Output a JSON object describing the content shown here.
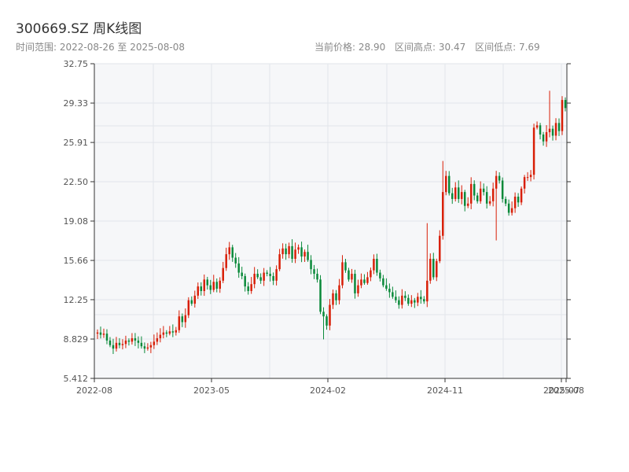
{
  "header": {
    "title": "300669.SZ 周K线图",
    "range_text": "时间范围: 2022-08-26 至 2025-08-08",
    "current_price": "当前价格: 28.90",
    "period_high": "区间高点: 30.47",
    "period_low": "区间低点: 7.69"
  },
  "colors": {
    "up": "#d81e06",
    "down": "#098939",
    "plot_bg": "#f6f7f9",
    "grid": "#e2e5ea",
    "axis": "#333333"
  },
  "chart_data": {
    "type": "candlestick",
    "title": "300669.SZ 周K线图",
    "start_date": "2022-08-26",
    "end_date": "2025-08-08",
    "ylim": [
      5.412,
      32.75
    ],
    "y_ticks": [
      "32.75",
      "29.33",
      "25.91",
      "22.50",
      "19.08",
      "15.66",
      "12.25",
      "8.829",
      "5.412"
    ],
    "x_ticks": [
      "2022-08",
      "2023-05",
      "2024-02",
      "2024-11",
      "2025-07",
      "2025-08"
    ],
    "grid": true,
    "closes": [
      9.4,
      9.2,
      9.3,
      8.7,
      8.3,
      8.0,
      8.5,
      8.3,
      8.4,
      8.7,
      8.6,
      8.9,
      8.7,
      8.5,
      8.2,
      8.0,
      8.1,
      8.3,
      8.6,
      8.9,
      9.2,
      9.4,
      9.3,
      9.5,
      9.4,
      9.6,
      10.8,
      10.3,
      10.9,
      12.2,
      11.9,
      12.6,
      13.4,
      13.0,
      14.0,
      13.5,
      13.1,
      13.8,
      13.2,
      13.9,
      15.0,
      16.2,
      16.8,
      15.9,
      15.4,
      14.6,
      14.3,
      13.4,
      13.0,
      13.6,
      14.5,
      14.2,
      13.9,
      14.6,
      14.5,
      14.3,
      13.9,
      14.9,
      16.2,
      16.7,
      16.2,
      16.9,
      15.8,
      16.6,
      16.8,
      16.0,
      16.4,
      15.7,
      14.9,
      14.5,
      14.0,
      11.2,
      10.8,
      10.0,
      11.8,
      12.8,
      12.2,
      13.5,
      15.5,
      14.8,
      14.0,
      14.5,
      12.8,
      13.5,
      14.0,
      13.7,
      14.2,
      14.8,
      15.8,
      14.6,
      14.1,
      13.5,
      13.2,
      12.9,
      12.5,
      12.2,
      11.8,
      12.6,
      12.4,
      11.9,
      12.2,
      12.0,
      12.5,
      12.3,
      12.1,
      13.9,
      15.8,
      14.2,
      15.6,
      17.8,
      21.6,
      23.0,
      21.5,
      21.0,
      22.0,
      21.0,
      21.6,
      20.4,
      20.6,
      22.3,
      21.3,
      20.8,
      21.9,
      21.6,
      20.6,
      20.8,
      21.9,
      23.0,
      22.6,
      21.0,
      20.6,
      19.8,
      20.2,
      21.2,
      20.7,
      21.9,
      22.9,
      22.9,
      23.1,
      27.2,
      27.4,
      26.6,
      26.0,
      26.8,
      27.1,
      26.5,
      27.6,
      26.9,
      29.6,
      28.9
    ],
    "series": [
      {
        "name": "300669.SZ",
        "values": "closes"
      }
    ]
  }
}
